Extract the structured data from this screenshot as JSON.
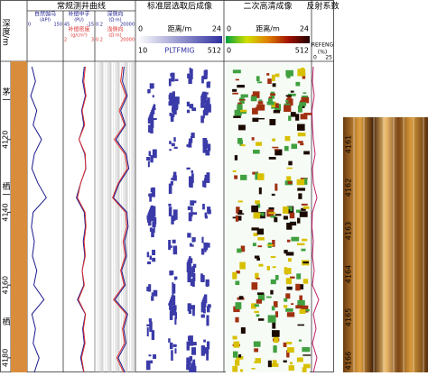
{
  "chart_data": {
    "type": "well-log",
    "depth_label": "深度/m",
    "depth_ticks": [
      4120,
      4140,
      4160,
      4180
    ],
    "ylim": [
      4099,
      4184
    ],
    "formations": [
      {
        "name": "茅一",
        "depth": 4108
      },
      {
        "name": "栖一",
        "depth": 4134
      },
      {
        "name": "栖",
        "depth": 4170
      }
    ],
    "tracks": [
      {
        "title": "常规测井曲线"
      },
      {
        "title": "标准层选取后成像",
        "axis_label": "距离/m",
        "xlim": [
          0,
          24
        ],
        "curve": "PLTFMIG",
        "scale": [
          10,
          512
        ]
      },
      {
        "title": "二次高清成像",
        "axis_label": "距离/m",
        "xlim": [
          0,
          24
        ],
        "scale": [
          0,
          512
        ]
      },
      {
        "title": "反射系数",
        "curve": "REFENG",
        "unit": "(%)",
        "xlim": [
          0,
          25
        ]
      }
    ],
    "depths": [
      4100,
      4104,
      4108,
      4112,
      4116,
      4120,
      4124,
      4128,
      4132,
      4136,
      4140,
      4144,
      4148,
      4152,
      4156,
      4160,
      4164,
      4168,
      4172,
      4176,
      4180,
      4184
    ],
    "series": [
      {
        "name": "自然伽马",
        "unit": "(API)",
        "xlim": [
          0,
          150
        ],
        "color": "#1a1a8c",
        "col": 0,
        "values": [
          20,
          35,
          15,
          40,
          25,
          60,
          30,
          20,
          45,
          80,
          25,
          18,
          30,
          22,
          40,
          28,
          70,
          20,
          35,
          25,
          50,
          30
        ]
      },
      {
        "name": "补偿中子",
        "unit": "(PU)",
        "xlim": [
          45,
          -15
        ],
        "color": "#1a1a8c",
        "col": 1,
        "values": [
          5,
          8,
          3,
          10,
          6,
          15,
          4,
          2,
          12,
          20,
          5,
          3,
          7,
          4,
          9,
          6,
          18,
          3,
          8,
          5,
          12,
          6
        ]
      },
      {
        "name": "补偿密度",
        "unit": "(g/cm³)",
        "xlim": [
          2,
          3
        ],
        "color": "#e03030",
        "col": 1,
        "values": [
          2.7,
          2.65,
          2.72,
          2.6,
          2.68,
          2.5,
          2.7,
          2.71,
          2.55,
          2.45,
          2.69,
          2.72,
          2.66,
          2.7,
          2.6,
          2.67,
          2.48,
          2.71,
          2.64,
          2.69,
          2.58,
          2.66
        ]
      },
      {
        "name": "深侧向",
        "unit": "(Ω·m)",
        "xlim": [
          0.2,
          20000
        ],
        "log": true,
        "color": "#1a1a8c",
        "col": 2,
        "values": [
          800,
          500,
          2000,
          300,
          1200,
          80,
          1500,
          3000,
          200,
          40,
          1800,
          2500,
          900,
          1600,
          400,
          1100,
          60,
          2200,
          700,
          1400,
          150,
          1000
        ]
      },
      {
        "name": "浅侧向",
        "unit": "(Ω·m)",
        "xlim": [
          0.2,
          20000
        ],
        "log": true,
        "color": "#e03030",
        "col": 2,
        "values": [
          500,
          300,
          1400,
          200,
          900,
          50,
          1000,
          2000,
          150,
          30,
          1200,
          1700,
          600,
          1100,
          300,
          800,
          40,
          1500,
          500,
          900,
          100,
          700
        ]
      },
      {
        "name": "REFENG",
        "xlim": [
          0,
          25
        ],
        "color": "#c0206a",
        "col": 3,
        "values": [
          2,
          1,
          3,
          0.5,
          1,
          2,
          4,
          1,
          2,
          6,
          1,
          0.5,
          2,
          1,
          3,
          1,
          8,
          2,
          5,
          1,
          6,
          2
        ]
      }
    ],
    "image_depths": [
      4161,
      4162,
      4163,
      4164,
      4165,
      4166
    ]
  }
}
